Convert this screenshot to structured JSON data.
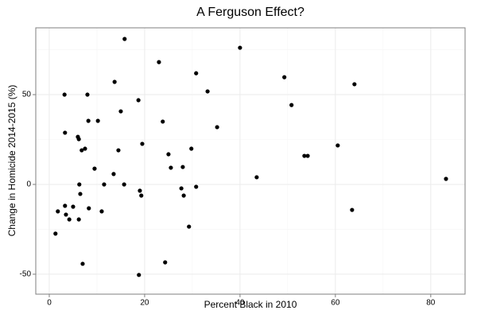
{
  "chart_data": {
    "type": "scatter",
    "title": "A Ferguson Effect?",
    "x_label": "Percent Black in 2010",
    "y_label": "Change in Homicide 2014-2015 (%)",
    "color": "#000000",
    "grid": true,
    "xlim": [
      -2.83,
      87.2
    ],
    "ylim": [
      -61.1,
      87.2
    ],
    "xticks": [
      0,
      20,
      40,
      60,
      80
    ],
    "yticks": [
      -50,
      0,
      50
    ],
    "xminor_ticks": [
      10,
      30,
      50,
      70
    ],
    "yminor_ticks": [
      -25,
      25,
      75
    ],
    "x": [
      15.8,
      40.0,
      23.0,
      30.8,
      49.3,
      64.0,
      3.2,
      8.0,
      13.7,
      33.2,
      50.8,
      18.7,
      15.0,
      8.2,
      10.2,
      23.8,
      35.2,
      3.3,
      6.0,
      6.2,
      6.8,
      7.5,
      19.5,
      14.5,
      60.5,
      53.5,
      54.2,
      25.0,
      29.8,
      9.5,
      25.5,
      28.0,
      13.5,
      43.5,
      83.2,
      6.3,
      11.5,
      15.7,
      19.0,
      27.7,
      30.8,
      6.5,
      19.3,
      28.2,
      1.8,
      3.3,
      5.0,
      3.5,
      4.2,
      6.2,
      8.3,
      11.0,
      29.3,
      63.5,
      1.3,
      24.3,
      7.0,
      18.8
    ],
    "values": [
      81.0,
      76.1,
      68.1,
      61.9,
      59.7,
      55.8,
      50.0,
      50.0,
      57.1,
      51.8,
      44.2,
      46.9,
      40.7,
      35.4,
      35.4,
      35.0,
      31.9,
      28.8,
      26.5,
      25.2,
      19.0,
      19.9,
      22.6,
      19.0,
      21.7,
      15.9,
      15.9,
      16.8,
      19.9,
      8.8,
      9.3,
      9.7,
      5.8,
      4.0,
      3.1,
      0,
      0,
      0,
      -3.5,
      -2.2,
      -1.3,
      -5.3,
      -6.2,
      -6.2,
      -15.0,
      -11.9,
      -12.4,
      -16.8,
      -19.5,
      -19.5,
      -13.3,
      -15.0,
      -23.5,
      -14.2,
      -27.4,
      -43.4,
      -44.2,
      -50.4
    ]
  }
}
